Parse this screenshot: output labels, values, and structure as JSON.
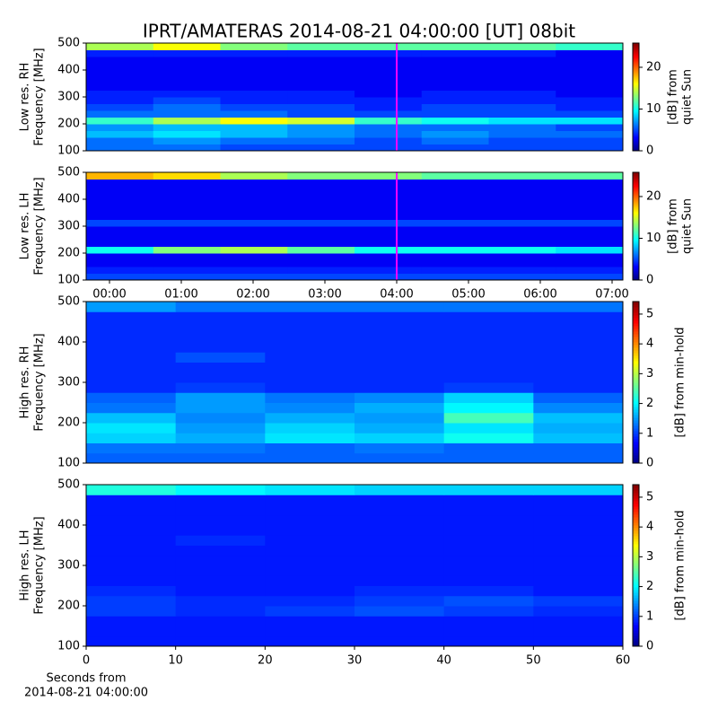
{
  "chart_data": [
    {
      "type": "heatmap",
      "title": "IPRT/AMATERAS 2014-08-21 04:00:00 [UT]   08bit",
      "ylabel": [
        "Low res. RH",
        "Frequency [MHz]"
      ],
      "xlim": [
        -0.325,
        7.15
      ],
      "ylim": [
        100,
        500
      ],
      "yticks": [
        100,
        200,
        300,
        400,
        500
      ],
      "colormap": "jet",
      "clim": [
        0,
        25.8
      ],
      "cticks": [
        0,
        10,
        20
      ],
      "clabel": [
        "[dB] from",
        "quiet Sun"
      ],
      "cursor_x": 4,
      "cursor_color": "#ff00ff",
      "z": [
        [
          6,
          6,
          5,
          5,
          5,
          5,
          5,
          5
        ],
        [
          6,
          7,
          6,
          6,
          5,
          6,
          5,
          5
        ],
        [
          8,
          9,
          8,
          7,
          6,
          7,
          6,
          6
        ],
        [
          7,
          8,
          8,
          7,
          6,
          6,
          6,
          5
        ],
        [
          11,
          14,
          16,
          15,
          11,
          10,
          9,
          9
        ],
        [
          6,
          6,
          6,
          5,
          5,
          5,
          5,
          5
        ],
        [
          5,
          6,
          5,
          5,
          4,
          5,
          5,
          4
        ],
        [
          4,
          5,
          4,
          4,
          4,
          4,
          4,
          4
        ],
        [
          4,
          4,
          4,
          4,
          3,
          4,
          4,
          3
        ],
        [
          3,
          3,
          3,
          3,
          3,
          3,
          3,
          3
        ],
        [
          3,
          3,
          3,
          3,
          3,
          3,
          3,
          3
        ],
        [
          3,
          3,
          3,
          3,
          3,
          3,
          3,
          3
        ],
        [
          3,
          3,
          3,
          3,
          3,
          3,
          3,
          3
        ],
        [
          3,
          3,
          3,
          3,
          3,
          3,
          3,
          3
        ],
        [
          4,
          4,
          4,
          4,
          4,
          4,
          4,
          3
        ],
        [
          14,
          16,
          13,
          12,
          12,
          12,
          12,
          11
        ]
      ]
    },
    {
      "type": "heatmap",
      "ylabel": [
        "Low res. LH",
        "Frequency [MHz]"
      ],
      "xlim": [
        -0.325,
        7.15
      ],
      "ylim": [
        100,
        500
      ],
      "yticks": [
        100,
        200,
        300,
        400,
        500
      ],
      "xticks": [
        {
          "value": 0,
          "label": "00:00"
        },
        {
          "value": 1,
          "label": "01:00"
        },
        {
          "value": 2,
          "label": "02:00"
        },
        {
          "value": 3,
          "label": "03:00"
        },
        {
          "value": 4,
          "label": "04:00"
        },
        {
          "value": 5,
          "label": "05:00"
        },
        {
          "value": 6,
          "label": "06:00"
        },
        {
          "value": 7,
          "label": "07:00"
        }
      ],
      "colormap": "jet",
      "clim": [
        0,
        25.8
      ],
      "cticks": [
        0,
        10,
        20
      ],
      "clabel": [
        "[dB] from",
        "quiet Sun"
      ],
      "cursor_x": 4,
      "cursor_color": "#ff00ff",
      "z": [
        [
          5,
          5,
          5,
          5,
          5,
          5,
          5,
          5
        ],
        [
          4,
          4,
          4,
          4,
          4,
          4,
          4,
          4
        ],
        [
          3,
          3,
          3,
          3,
          3,
          3,
          3,
          3
        ],
        [
          3,
          3,
          3,
          3,
          3,
          3,
          3,
          3
        ],
        [
          10,
          13,
          14,
          12,
          10,
          10,
          10,
          9
        ],
        [
          3,
          3,
          3,
          3,
          3,
          3,
          3,
          3
        ],
        [
          3,
          3,
          3,
          3,
          3,
          3,
          3,
          3
        ],
        [
          3,
          3,
          3,
          3,
          3,
          3,
          3,
          3
        ],
        [
          5,
          5,
          5,
          5,
          5,
          5,
          5,
          5
        ],
        [
          3,
          3,
          3,
          3,
          3,
          3,
          3,
          3
        ],
        [
          3,
          3,
          3,
          3,
          3,
          3,
          3,
          3
        ],
        [
          3,
          3,
          3,
          3,
          3,
          3,
          3,
          3
        ],
        [
          3,
          3,
          3,
          3,
          3,
          3,
          3,
          3
        ],
        [
          3,
          3,
          3,
          3,
          3,
          3,
          3,
          3
        ],
        [
          3,
          3,
          3,
          3,
          3,
          3,
          3,
          3
        ],
        [
          18,
          17,
          14,
          13,
          13,
          12,
          12,
          12
        ]
      ]
    },
    {
      "type": "heatmap",
      "ylabel": [
        "High res. RH",
        "Frequency [MHz]"
      ],
      "xlim": [
        0,
        60
      ],
      "ylim": [
        100,
        500
      ],
      "yticks": [
        100,
        200,
        300,
        400,
        500
      ],
      "colormap": "jet",
      "clim": [
        0,
        5.42
      ],
      "cticks": [
        0,
        1,
        2,
        3,
        4,
        5
      ],
      "clabel": [
        "[dB] from min-hold"
      ],
      "z": [
        [
          1.2,
          1.2,
          1.2,
          1.2,
          1.2,
          1.2
        ],
        [
          1.3,
          1.3,
          1.2,
          1.3,
          1.2,
          1.2
        ],
        [
          1.8,
          1.6,
          1.9,
          1.8,
          2.1,
          1.7
        ],
        [
          1.9,
          1.5,
          1.8,
          1.6,
          1.9,
          1.6
        ],
        [
          1.7,
          1.4,
          1.6,
          1.5,
          2.4,
          1.7
        ],
        [
          1.3,
          1.5,
          1.4,
          1.6,
          2.0,
          1.4
        ],
        [
          1.2,
          1.5,
          1.3,
          1.4,
          1.8,
          1.2
        ],
        [
          0.9,
          1.0,
          0.9,
          0.9,
          1.0,
          0.9
        ],
        [
          0.9,
          0.9,
          0.9,
          0.9,
          0.9,
          0.9
        ],
        [
          0.9,
          0.9,
          0.9,
          0.9,
          0.9,
          0.9
        ],
        [
          0.9,
          1.1,
          0.9,
          0.9,
          0.9,
          0.9
        ],
        [
          0.9,
          0.9,
          0.9,
          0.9,
          0.9,
          0.9
        ],
        [
          0.9,
          0.9,
          0.9,
          0.9,
          0.9,
          0.9
        ],
        [
          0.9,
          0.9,
          0.9,
          0.9,
          0.9,
          0.9
        ],
        [
          0.9,
          0.9,
          0.9,
          0.9,
          0.9,
          0.9
        ],
        [
          1.5,
          1.3,
          1.3,
          1.3,
          1.3,
          1.3
        ]
      ]
    },
    {
      "type": "heatmap",
      "ylabel": [
        "High res. LH",
        "Frequency [MHz]"
      ],
      "xlim": [
        0,
        60
      ],
      "ylim": [
        100,
        500
      ],
      "yticks": [
        100,
        200,
        300,
        400,
        500
      ],
      "xticks": [
        0,
        10,
        20,
        30,
        40,
        50,
        60
      ],
      "xlabel": [
        "Seconds from",
        "2014-08-21 04:00:00"
      ],
      "colormap": "jet",
      "clim": [
        0,
        5.42
      ],
      "cticks": [
        0,
        1,
        2,
        3,
        4,
        5
      ],
      "clabel": [
        "[dB] from min-hold"
      ],
      "z": [
        [
          0.8,
          0.8,
          0.8,
          0.8,
          0.8,
          0.8
        ],
        [
          0.8,
          0.8,
          0.8,
          0.8,
          0.8,
          0.8
        ],
        [
          0.8,
          0.8,
          0.8,
          0.8,
          0.8,
          0.8
        ],
        [
          1.0,
          0.9,
          1.0,
          1.1,
          1.0,
          0.9
        ],
        [
          1.0,
          0.9,
          0.9,
          1.0,
          1.1,
          1.0
        ],
        [
          0.9,
          0.8,
          0.8,
          0.9,
          0.9,
          0.8
        ],
        [
          0.8,
          0.8,
          0.8,
          0.8,
          0.8,
          0.8
        ],
        [
          0.8,
          0.8,
          0.8,
          0.8,
          0.8,
          0.8
        ],
        [
          0.8,
          0.8,
          0.8,
          0.8,
          0.8,
          0.8
        ],
        [
          0.8,
          0.8,
          0.8,
          0.8,
          0.8,
          0.8
        ],
        [
          0.8,
          0.9,
          0.8,
          0.8,
          0.8,
          0.8
        ],
        [
          0.8,
          0.8,
          0.8,
          0.8,
          0.8,
          0.8
        ],
        [
          0.8,
          0.8,
          0.8,
          0.8,
          0.8,
          0.8
        ],
        [
          0.8,
          0.8,
          0.8,
          0.8,
          0.8,
          0.8
        ],
        [
          0.8,
          0.8,
          0.8,
          0.8,
          0.8,
          0.8
        ],
        [
          2.2,
          2.0,
          1.9,
          1.8,
          1.8,
          1.8
        ]
      ]
    }
  ]
}
